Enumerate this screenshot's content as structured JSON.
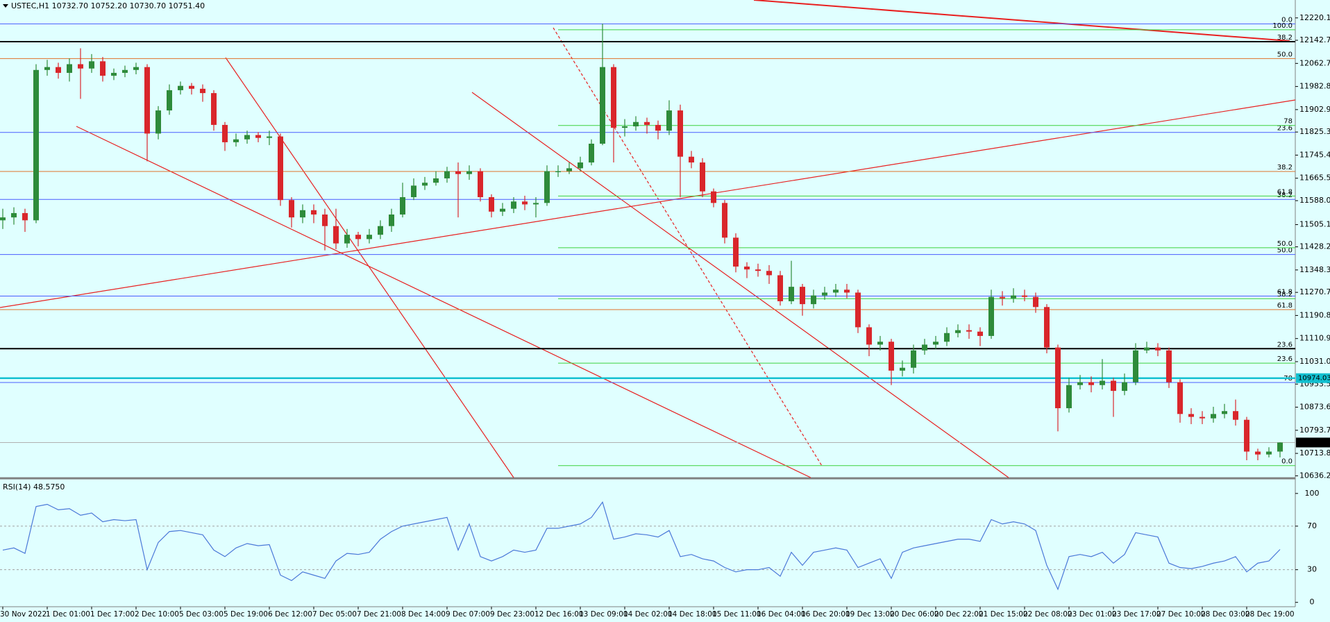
{
  "chart_data": [
    {
      "type": "candlestick",
      "title": "USTEC,H1  10732.70 10752.20 10730.70 10751.40",
      "categories": [
        "30 Nov 2022",
        null,
        null,
        null,
        "1 Dec 01:00",
        null,
        null,
        null,
        "1 Dec 17:00",
        null,
        null,
        null,
        "2 Dec 10:00",
        null,
        null,
        null,
        "5 Dec 03:00",
        null,
        null,
        null,
        "5 Dec 19:00",
        null,
        null,
        null,
        "6 Dec 12:00",
        null,
        null,
        null,
        "7 Dec 05:00",
        null,
        null,
        null,
        "7 Dec 21:00",
        null,
        null,
        null,
        "8 Dec 14:00",
        null,
        null,
        null,
        "9 Dec 07:00",
        null,
        null,
        null,
        "9 Dec 23:00",
        null,
        null,
        null,
        "12 Dec 16:00",
        null,
        null,
        null,
        "13 Dec 09:00",
        null,
        null,
        null,
        "14 Dec 02:00",
        null,
        null,
        null,
        "14 Dec 18:00",
        null,
        null,
        null,
        "15 Dec 11:00",
        null,
        null,
        null,
        "16 Dec 04:00",
        null,
        null,
        null,
        "16 Dec 20:00",
        null,
        null,
        null,
        "19 Dec 13:00",
        null,
        null,
        null,
        "20 Dec 06:00",
        null,
        null,
        null,
        "20 Dec 22:00",
        null,
        null,
        null,
        "21 Dec 15:00",
        null,
        null,
        null,
        "22 Dec 08:00",
        null,
        null,
        null,
        "23 Dec 01:00",
        null,
        null,
        null,
        "23 Dec 17:00",
        null,
        null,
        null,
        "27 Dec 10:00",
        null,
        null,
        null,
        "28 Dec 03:00",
        null,
        null,
        null,
        "28 Dec 19:00",
        null,
        null,
        null
      ],
      "open": [
        11520,
        11530,
        11545,
        11520,
        12040,
        12050,
        12030,
        12060,
        12045,
        12070,
        12020,
        12030,
        12040,
        12050,
        11820,
        11900,
        11970,
        11985,
        11975,
        11960,
        11850,
        11790,
        11800,
        11815,
        11805,
        11810,
        11590,
        11530,
        11555,
        11540,
        11500,
        11440,
        11470,
        11455,
        11470,
        11500,
        11540,
        11600,
        11640,
        11650,
        11665,
        11690,
        11680,
        11690,
        11600,
        11550,
        11560,
        11585,
        11575,
        11580,
        11690,
        11690,
        11700,
        11720,
        11785,
        12050,
        11840,
        11845,
        11860,
        11850,
        11830,
        11900,
        11740,
        11720,
        11620,
        11580,
        11460,
        11360,
        11350,
        11345,
        11330,
        11240,
        11290,
        11230,
        11260,
        11270,
        11280,
        11270,
        11150,
        11090,
        11100,
        11000,
        11010,
        11070,
        11090,
        11100,
        11130,
        11140,
        11135,
        11120,
        11255,
        11250,
        11260,
        11255,
        11220,
        11080,
        10870,
        10950,
        10960,
        10950,
        10965,
        10930,
        10960,
        11070,
        11080,
        11070,
        10960,
        10850,
        10840,
        10835,
        10850,
        10860,
        10830,
        10720,
        10710,
        10720
      ],
      "high": [
        11560,
        11565,
        11560,
        12060,
        12075,
        12065,
        12080,
        12115,
        12095,
        12085,
        12045,
        12055,
        12065,
        12060,
        11915,
        11990,
        12000,
        11995,
        11990,
        11970,
        11860,
        11820,
        11830,
        11825,
        11830,
        11820,
        11600,
        11575,
        11575,
        11560,
        11560,
        11490,
        11480,
        11490,
        11520,
        11560,
        11650,
        11665,
        11670,
        11690,
        11705,
        11720,
        11710,
        11700,
        11610,
        11580,
        11600,
        11605,
        11600,
        11710,
        11710,
        11720,
        11740,
        11800,
        12200,
        12060,
        11870,
        11880,
        11875,
        11865,
        11935,
        11920,
        11760,
        11735,
        11630,
        11590,
        11475,
        11375,
        11370,
        11365,
        11345,
        11380,
        11300,
        11280,
        11290,
        11300,
        11300,
        11280,
        11160,
        11120,
        11110,
        11035,
        11090,
        11110,
        11120,
        11150,
        11160,
        11160,
        11150,
        11280,
        11275,
        11285,
        11280,
        11270,
        11230,
        11090,
        10975,
        10985,
        10980,
        11040,
        10975,
        10990,
        11095,
        11100,
        11095,
        11080,
        10970,
        10870,
        10860,
        10875,
        10885,
        10900,
        10840,
        10730,
        10735,
        10752.2
      ],
      "low": [
        11490,
        11505,
        11480,
        11510,
        12020,
        12010,
        12000,
        11940,
        12030,
        12000,
        12005,
        12015,
        12025,
        11724,
        11800,
        11885,
        11955,
        11955,
        11930,
        11830,
        11760,
        11775,
        11785,
        11790,
        11780,
        11570,
        11495,
        11510,
        11510,
        11416,
        11420,
        11425,
        11430,
        11440,
        11455,
        11480,
        11530,
        11590,
        11625,
        11640,
        11650,
        11530,
        11660,
        11585,
        11530,
        11535,
        11545,
        11555,
        11530,
        11570,
        11670,
        11680,
        11690,
        11710,
        11780,
        11720,
        11810,
        11830,
        11820,
        11800,
        11815,
        11600,
        11700,
        11600,
        11565,
        11440,
        11340,
        11320,
        11325,
        11300,
        11225,
        11230,
        11190,
        11215,
        11245,
        11255,
        11250,
        11130,
        11050,
        11070,
        10950,
        10980,
        10990,
        11055,
        11075,
        11085,
        11115,
        11110,
        11085,
        11110,
        11225,
        11235,
        11240,
        11200,
        11060,
        10790,
        10855,
        10935,
        10925,
        10935,
        10840,
        10915,
        10950,
        11060,
        11050,
        10940,
        10820,
        10815,
        10815,
        10820,
        10835,
        10810,
        10690,
        10690,
        10700,
        10700
      ],
      "close": [
        11530,
        11545,
        11520,
        12040,
        12050,
        12030,
        12060,
        12045,
        12070,
        12020,
        12030,
        12040,
        12050,
        11820,
        11900,
        11970,
        11985,
        11975,
        11960,
        11850,
        11790,
        11800,
        11815,
        11805,
        11810,
        11590,
        11530,
        11555,
        11540,
        11500,
        11440,
        11470,
        11455,
        11470,
        11500,
        11540,
        11600,
        11640,
        11650,
        11665,
        11690,
        11680,
        11690,
        11600,
        11550,
        11560,
        11585,
        11575,
        11580,
        11690,
        11690,
        11700,
        11720,
        11785,
        12050,
        11840,
        11845,
        11860,
        11850,
        11830,
        11900,
        11740,
        11720,
        11620,
        11580,
        11460,
        11360,
        11350,
        11345,
        11330,
        11240,
        11290,
        11230,
        11260,
        11270,
        11280,
        11270,
        11150,
        11090,
        11100,
        11000,
        11010,
        11070,
        11090,
        11100,
        11130,
        11140,
        11135,
        11120,
        11255,
        11250,
        11260,
        11255,
        11220,
        11080,
        10870,
        10950,
        10960,
        10950,
        10965,
        10930,
        10960,
        11070,
        11080,
        11070,
        10960,
        10850,
        10840,
        10835,
        10850,
        10860,
        10830,
        10720,
        10710,
        10720,
        10751.4
      ],
      "up_color": "#2e8b3a",
      "down_color": "#d9262b",
      "ylim": [
        10630,
        12282
      ],
      "yticks": [
        {
          "value": 12220.1,
          "label": "12220.10"
        },
        {
          "value": 12142.7,
          "label": "12142.70"
        },
        {
          "value": 12062.7,
          "label": "12062.70"
        },
        {
          "value": 11982.8,
          "label": "11982.80"
        },
        {
          "value": 11902.9,
          "label": "11902.90"
        },
        11825.35,
        11745.45,
        11665.55,
        {
          "value": 11588,
          "label": "11588.00"
        },
        {
          "value": 11505.1,
          "label": "11505.10"
        },
        {
          "value": 11428.2,
          "label": "11428.20"
        },
        {
          "value": 11348.3,
          "label": "11348.30"
        },
        11270.75,
        11190.85,
        11110.95,
        11031.05,
        {
          "value": 10953.5,
          "label": "10953.50"
        },
        {
          "value": 10873.6,
          "label": "10873.60"
        },
        {
          "value": 10793.7,
          "label": "10793.70"
        },
        {
          "value": 10713.8,
          "label": "10713.80"
        },
        10636.25
      ],
      "levels": [
        {
          "value": 12199.6,
          "label": "0.0",
          "color": "#4a5cff"
        },
        {
          "value": 11824,
          "label": "23.6",
          "color": "#4a5cff"
        },
        {
          "value": 11592.4,
          "label": "38.2",
          "color": "#4a5cff"
        },
        {
          "value": 11401.8,
          "label": "50.0",
          "color": "#4a5cff"
        },
        {
          "value": 11258,
          "label": "61.8",
          "color": "#4a5cff"
        },
        {
          "value": 10958.9,
          "label": "78",
          "color": "#4a5cff"
        },
        {
          "value": 12079.3,
          "label": "50.0",
          "color": "#e0702a"
        },
        {
          "value": 11689,
          "label": "38.2",
          "color": "#e0702a"
        },
        {
          "value": 11211,
          "label": "61.8",
          "color": "#e0702a"
        },
        {
          "value": 12138,
          "label": "38.2",
          "color": "#000000",
          "width": 2
        },
        {
          "value": 11076,
          "label": "23.6",
          "color": "#000000",
          "width": 2
        },
        {
          "value": 12179,
          "label": "100.0",
          "color": "#3cd23c",
          "x_start": 50
        },
        {
          "value": 11848,
          "label": "78",
          "color": "#3cd23c",
          "x_start": 50
        },
        {
          "value": 11604,
          "label": "61.8",
          "color": "#3cd23c",
          "x_start": 50
        },
        {
          "value": 11425,
          "label": "50.0",
          "color": "#3cd23c",
          "x_start": 50
        },
        {
          "value": 11249,
          "label": "38.2",
          "color": "#3cd23c",
          "x_start": 50
        },
        {
          "value": 11026,
          "label": "23.6",
          "color": "#3cd23c",
          "x_start": 50
        },
        {
          "value": 10671.5,
          "label": "0.0",
          "color": "#3cd23c",
          "x_start": 50
        }
      ],
      "bid_line": {
        "value": 10974.03,
        "color": "#12c0d0"
      },
      "current_price": {
        "value": 10751.4,
        "label": "10751.40"
      }
    },
    {
      "type": "line",
      "title": "RSI(14) 48.5750",
      "color": "#4a78d8",
      "values": [
        48,
        50,
        45,
        88,
        90,
        85,
        86,
        80,
        82,
        74,
        76,
        75,
        76,
        30,
        55,
        65,
        66,
        64,
        62,
        48,
        42,
        50,
        54,
        52,
        53,
        25,
        20,
        28,
        25,
        22,
        38,
        45,
        44,
        46,
        58,
        65,
        70,
        72,
        74,
        76,
        78,
        48,
        72,
        42,
        38,
        42,
        48,
        46,
        48,
        68,
        68,
        70,
        72,
        78,
        92,
        58,
        60,
        63,
        62,
        60,
        66,
        42,
        44,
        40,
        38,
        32,
        28,
        30,
        30,
        32,
        24,
        46,
        34,
        46,
        48,
        50,
        48,
        32,
        36,
        40,
        22,
        46,
        50,
        52,
        54,
        56,
        58,
        58,
        56,
        76,
        72,
        74,
        72,
        66,
        34,
        12,
        42,
        44,
        42,
        46,
        36,
        44,
        64,
        62,
        60,
        36,
        32,
        31,
        33,
        36,
        38,
        42,
        28,
        36,
        38,
        48.575
      ],
      "ylim": [
        -4,
        112
      ],
      "yticks": [
        100,
        70,
        30,
        0
      ],
      "levels": [
        70,
        30
      ]
    }
  ]
}
